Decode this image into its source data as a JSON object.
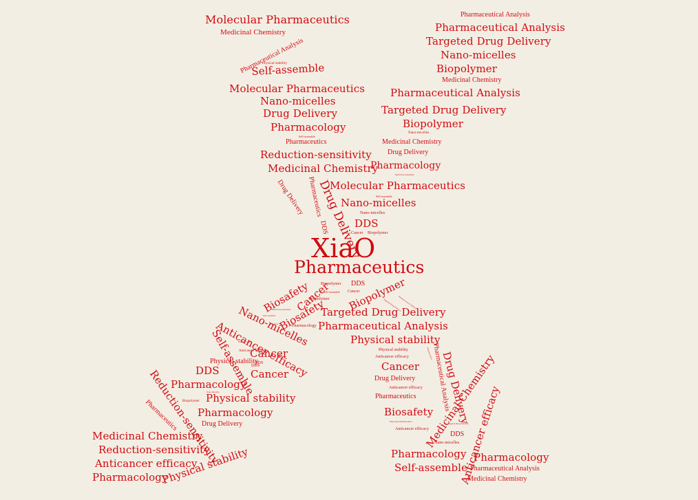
{
  "colors": {
    "background": "#f3eee3",
    "text": "#d10a12"
  },
  "words": [
    "Molecular Pharmaceutics",
    "Medicinal Chemistry",
    "Pharmaceutical Analysis",
    "Physical stability",
    "Self-assemble",
    "Molecular Pharmaceutics",
    "Nano-micelles",
    "Drug Delivery",
    "Pharmacology",
    "Self-assemble",
    "Pharmaceutics",
    "Reduction-sensitivity",
    "Medicinal Chemistry",
    "Drug Delivery",
    "Pharmaceutics",
    "Drug Delivery",
    "DDS",
    "Pharmaceutical Analysis",
    "Pharmaceutical Analysis",
    "Targeted Drug Delivery",
    "Nano-micelles",
    "Biopolymer",
    "Medicinal Chemistry",
    "Pharmaceutical Analysis",
    "Targeted Drug Delivery",
    "Biopolymer",
    "Nano-micelles",
    "Medicinal Chemistry",
    "Drug Delivery",
    "Pharmacology",
    "Reduction-sensitivity",
    "Self-assemble",
    "Molecular Pharmaceutics",
    "Nano-micelles",
    "Nano-micelles",
    "DDS",
    "Cancer",
    "Biopolymer",
    "Biosafety",
    "XiaO",
    "Pharmaceutics",
    "Biosafety",
    "Cancer",
    "Biopolymer",
    "Biopolymer",
    "Self-assemble",
    "Cancer",
    "DDS",
    "Biosafety",
    "Biopolymer",
    "Targeted Drug Delivery",
    "Pharmaceutical Analysis",
    "Self-assemble",
    "Reduction-sensitivity",
    "Biosafety",
    "Pharmacology",
    "Nano-micelles",
    "Anticancer efficacy",
    "Self-assemble",
    "Pharmaceutics",
    "Anticancer efficacy",
    "Cancer",
    "DDS",
    "Physical stability",
    "DDS",
    "Cancer",
    "DDS",
    "Pharmacology",
    "Reduction-sensitivity",
    "Nano-micelles",
    "Biopolymer",
    "Physical stability",
    "Pharmacology",
    "Drug Delivery",
    "Pharmaceutics",
    "Medicinal Chemistry",
    "Reduction-sensitivity",
    "Anticancer efficacy",
    "Pharmacology",
    "Physical stability",
    "Targeted Drug Delivery",
    "Pharmaceutical Analysis",
    "Physical stability",
    "Physical stability",
    "Anticancer efficacy",
    "Pharmaceutics",
    "Cancer",
    "Drug Delivery",
    "Anticancer efficacy",
    "Pharmaceutical Analysis",
    "Drug Delivery",
    "Pharmaceutics",
    "Biosafety",
    "Molecular Pharmaceutics",
    "Targeted Drug Delivery",
    "Anticancer efficacy",
    "Medicinal Chemistry",
    "Nano-micelles",
    "DDS",
    "Anticancer efficacy",
    "Pharmacology",
    "Pharmacology",
    "Self-assemble",
    "Pharmaceutical Analysis",
    "Medicinal Chemistry"
  ]
}
